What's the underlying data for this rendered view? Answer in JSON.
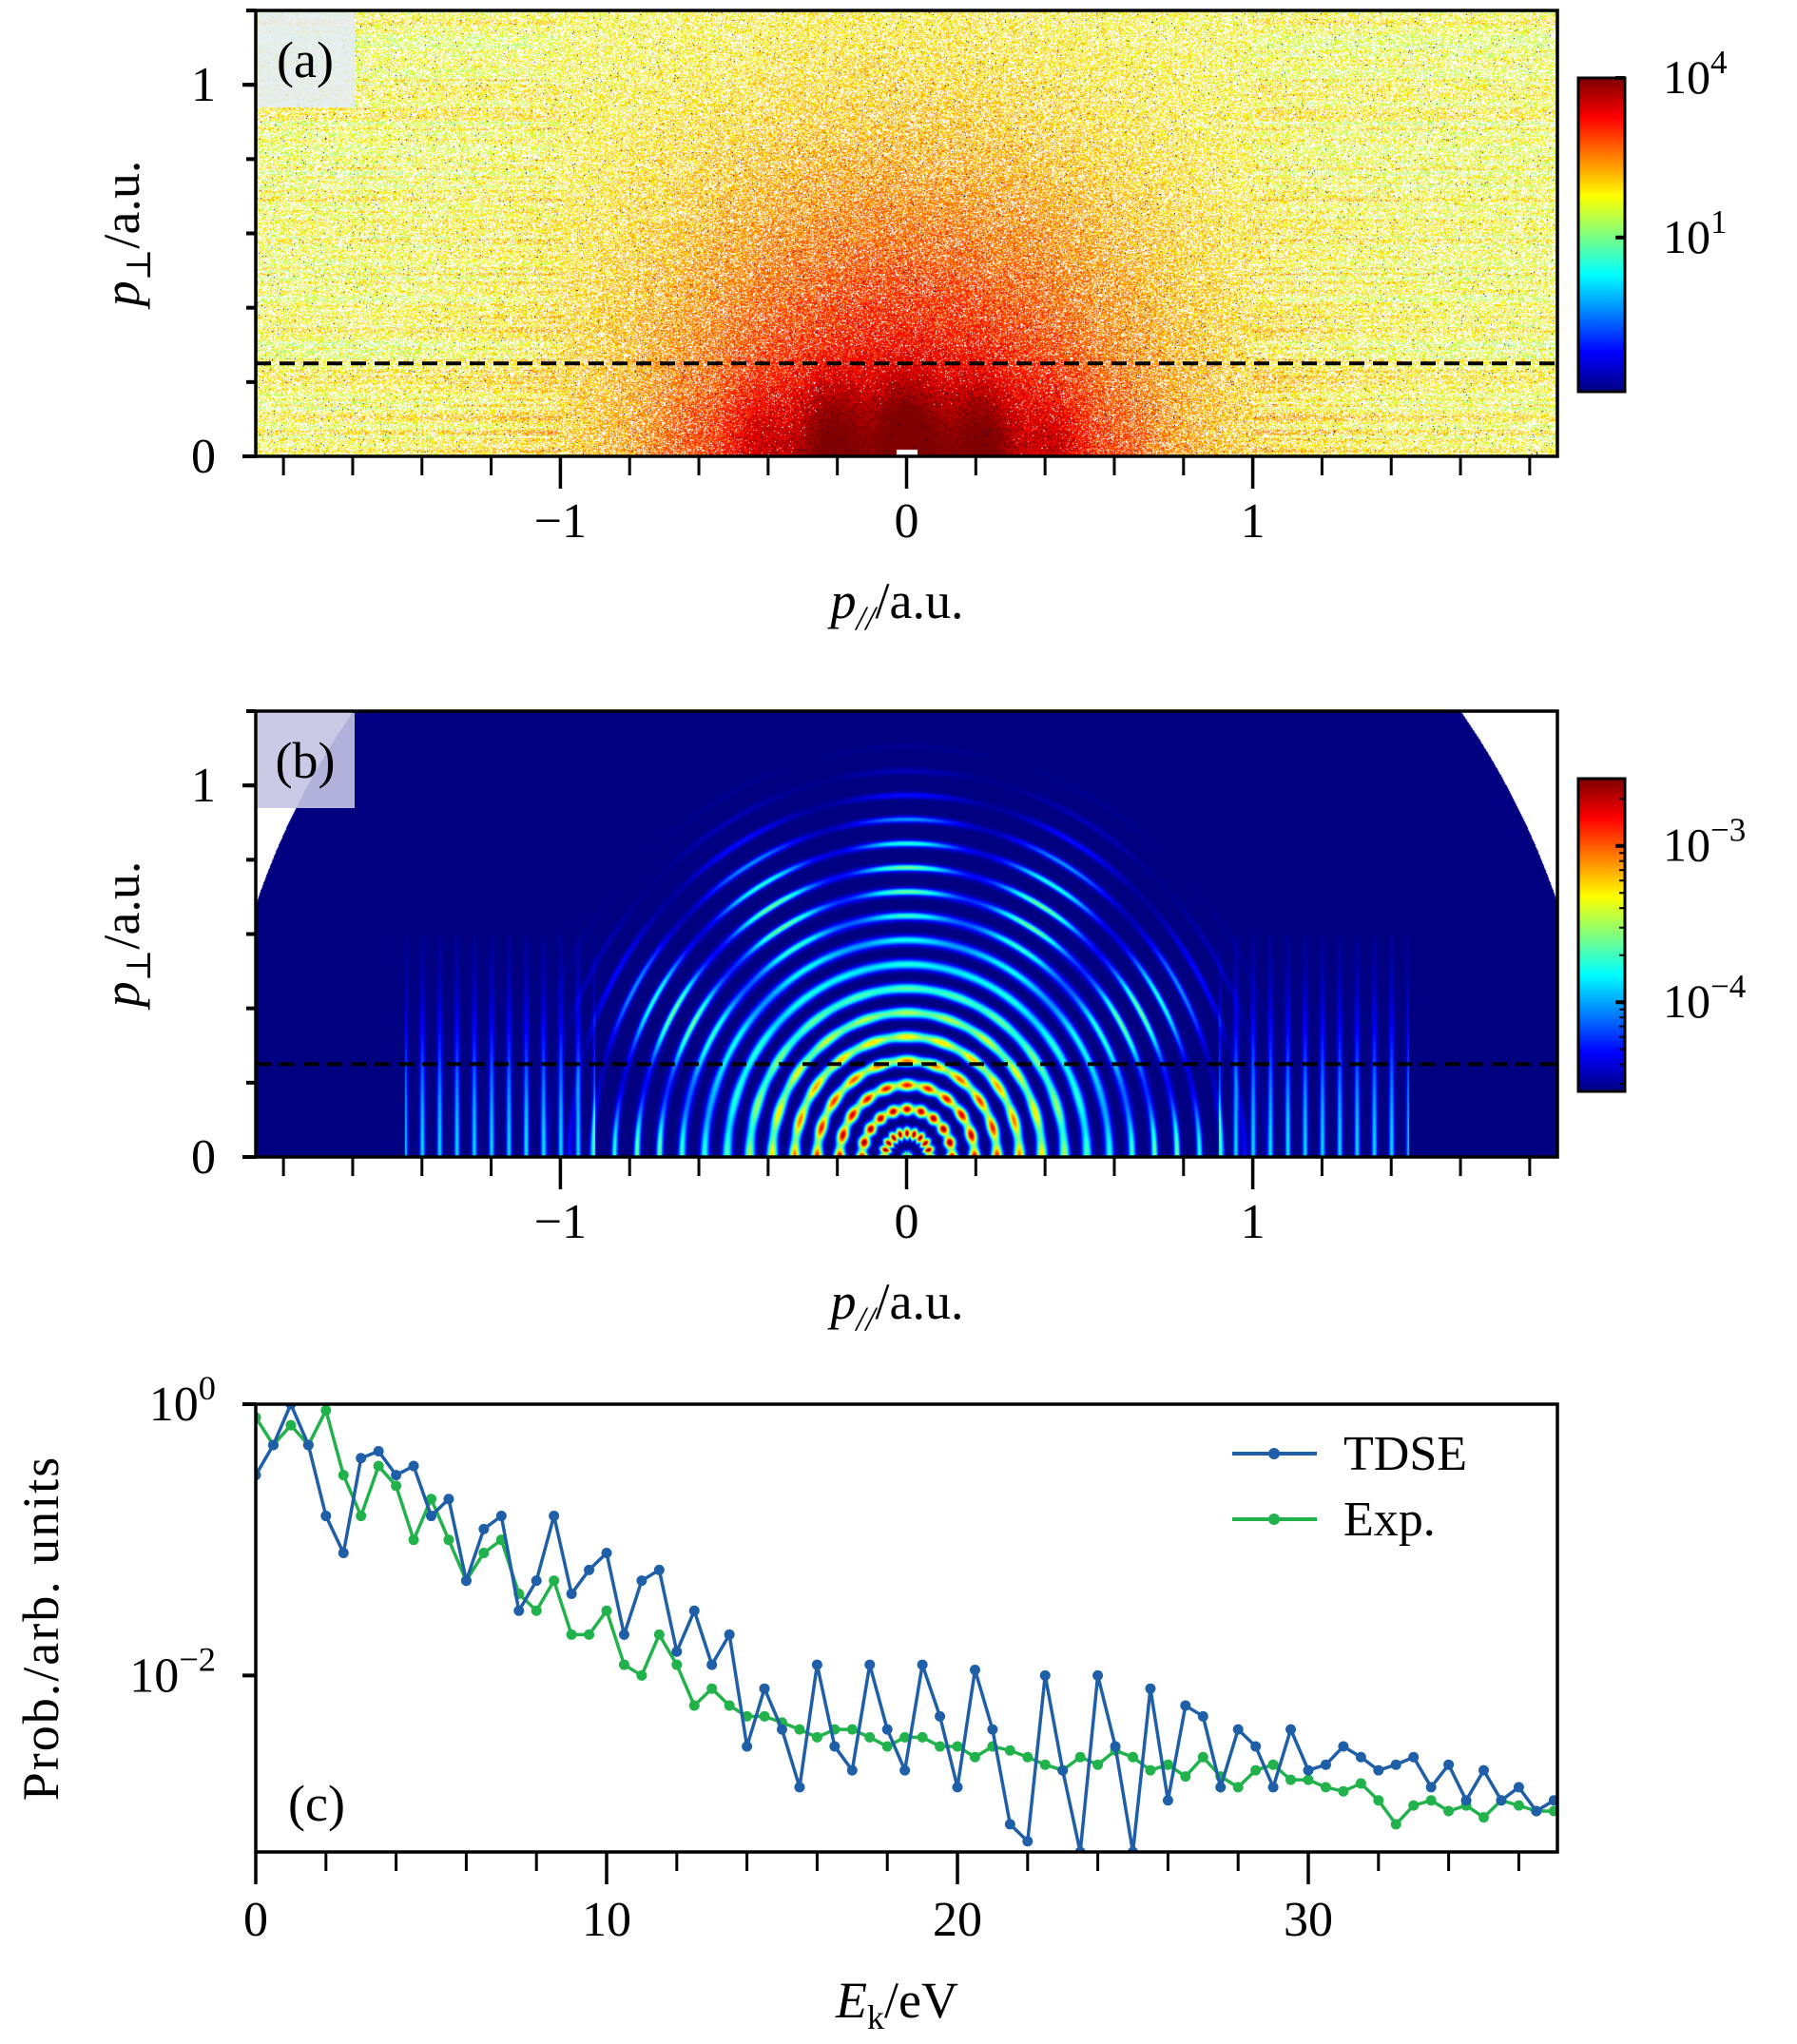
{
  "chart_data": [
    {
      "panel_label": "(a)",
      "type": "heatmap",
      "xlabel": {
        "var": "p",
        "sub": "//",
        "unit": "/a.u."
      },
      "ylabel": {
        "var": "p",
        "sub": "⊥",
        "unit": "/a.u."
      },
      "xlim": [
        -1.88,
        1.88
      ],
      "ylim": [
        0,
        1.2
      ],
      "xticks": [
        {
          "v": -1,
          "label": "−1"
        },
        {
          "v": 0,
          "label": "0"
        },
        {
          "v": 1,
          "label": "1"
        }
      ],
      "yticks": [
        {
          "v": 0,
          "label": "0"
        },
        {
          "v": 1,
          "label": "1"
        }
      ],
      "dashed_line_y": 0.25,
      "colormap": "jet",
      "color_scale": "log",
      "colorbar_log_range": [
        -1.9,
        4.0
      ],
      "colorbar_ticks": [
        {
          "v": 4,
          "label": "10^4"
        },
        {
          "v": 1,
          "label": "10^1"
        }
      ]
    },
    {
      "panel_label": "(b)",
      "type": "heatmap",
      "xlabel": {
        "var": "p",
        "sub": "//",
        "unit": "/a.u."
      },
      "ylabel": {
        "var": "p",
        "sub": "⊥",
        "unit": "/a.u."
      },
      "xlim": [
        -1.88,
        1.88
      ],
      "ylim": [
        0,
        1.2
      ],
      "xticks": [
        {
          "v": -1,
          "label": "−1"
        },
        {
          "v": 0,
          "label": "0"
        },
        {
          "v": 1,
          "label": "1"
        }
      ],
      "yticks": [
        {
          "v": 0,
          "label": "0"
        },
        {
          "v": 1,
          "label": "1"
        }
      ],
      "dashed_line_y": 0.25,
      "colormap": "jet",
      "color_scale": "log",
      "colorbar_log_range": [
        -4.57,
        -2.57
      ],
      "colorbar_ticks": [
        {
          "v": -3,
          "label": "10^−3"
        },
        {
          "v": -4,
          "label": "10^−4"
        }
      ]
    },
    {
      "panel_label": "(c)",
      "type": "line",
      "xlabel": {
        "var": "E",
        "sub": "k",
        "unit": "/eV"
      },
      "ylabel": "Prob./arb. units",
      "xlim": [
        0,
        37.1
      ],
      "ylim": [
        0.0005,
        1
      ],
      "yscale": "log",
      "xticks": [
        {
          "v": 0,
          "label": "0"
        },
        {
          "v": 10,
          "label": "10"
        },
        {
          "v": 20,
          "label": "20"
        },
        {
          "v": 30,
          "label": "30"
        }
      ],
      "yticks": [
        {
          "v": 1,
          "label": "10^0"
        },
        {
          "v": 0.01,
          "label": "10^−2"
        }
      ],
      "legend_position": "top-right",
      "x": [
        0,
        0.5,
        1,
        1.5,
        2,
        2.5,
        3,
        3.5,
        4,
        4.5,
        5,
        5.5,
        6,
        6.5,
        7,
        7.5,
        8,
        8.5,
        9,
        9.5,
        10,
        10.5,
        11,
        11.5,
        12,
        12.5,
        13,
        13.5,
        14,
        14.5,
        15,
        15.5,
        16,
        16.5,
        17,
        17.5,
        18,
        18.5,
        19,
        19.5,
        20,
        20.5,
        21,
        21.5,
        22,
        22.5,
        23,
        23.5,
        24,
        24.5,
        25,
        25.5,
        26,
        26.5,
        27,
        27.5,
        28,
        28.5,
        29,
        29.5,
        30,
        30.5,
        31,
        31.5,
        32,
        32.5,
        33,
        33.5,
        34,
        34.5,
        35,
        35.5,
        36,
        36.5,
        37
      ],
      "series": [
        {
          "name": "TDSE",
          "color": "#1f5fa8",
          "values": [
            0.3,
            0.5,
            1.0,
            0.5,
            0.15,
            0.08,
            0.4,
            0.45,
            0.3,
            0.35,
            0.15,
            0.2,
            0.05,
            0.12,
            0.15,
            0.03,
            0.05,
            0.15,
            0.04,
            0.06,
            0.08,
            0.02,
            0.05,
            0.06,
            0.015,
            0.03,
            0.012,
            0.02,
            0.003,
            0.008,
            0.004,
            0.0015,
            0.012,
            0.003,
            0.002,
            0.012,
            0.004,
            0.002,
            0.012,
            0.005,
            0.0015,
            0.011,
            0.004,
            0.0008,
            0.0006,
            0.01,
            0.002,
            0.0005,
            0.01,
            0.003,
            0.0005,
            0.008,
            0.0012,
            0.006,
            0.005,
            0.0015,
            0.004,
            0.003,
            0.0015,
            0.004,
            0.002,
            0.0022,
            0.003,
            0.0025,
            0.002,
            0.0022,
            0.0025,
            0.0015,
            0.0022,
            0.0012,
            0.002,
            0.0012,
            0.0015,
            0.001,
            0.0012
          ]
        },
        {
          "name": "Exp.",
          "color": "#22b24c",
          "values": [
            0.8,
            0.5,
            0.7,
            0.5,
            0.9,
            0.3,
            0.15,
            0.35,
            0.25,
            0.1,
            0.2,
            0.1,
            0.05,
            0.08,
            0.1,
            0.04,
            0.03,
            0.05,
            0.02,
            0.02,
            0.03,
            0.012,
            0.01,
            0.02,
            0.012,
            0.006,
            0.008,
            0.006,
            0.005,
            0.005,
            0.0045,
            0.004,
            0.0035,
            0.004,
            0.004,
            0.0035,
            0.003,
            0.0035,
            0.0035,
            0.003,
            0.003,
            0.0025,
            0.003,
            0.0028,
            0.0025,
            0.0022,
            0.002,
            0.0025,
            0.0022,
            0.0028,
            0.0025,
            0.002,
            0.0022,
            0.0018,
            0.0025,
            0.0018,
            0.0015,
            0.002,
            0.0022,
            0.0017,
            0.0017,
            0.0015,
            0.0014,
            0.0016,
            0.0012,
            0.0008,
            0.0011,
            0.0012,
            0.001,
            0.0011,
            0.0009,
            0.0012,
            0.0011,
            0.001,
            0.001
          ]
        }
      ]
    }
  ]
}
